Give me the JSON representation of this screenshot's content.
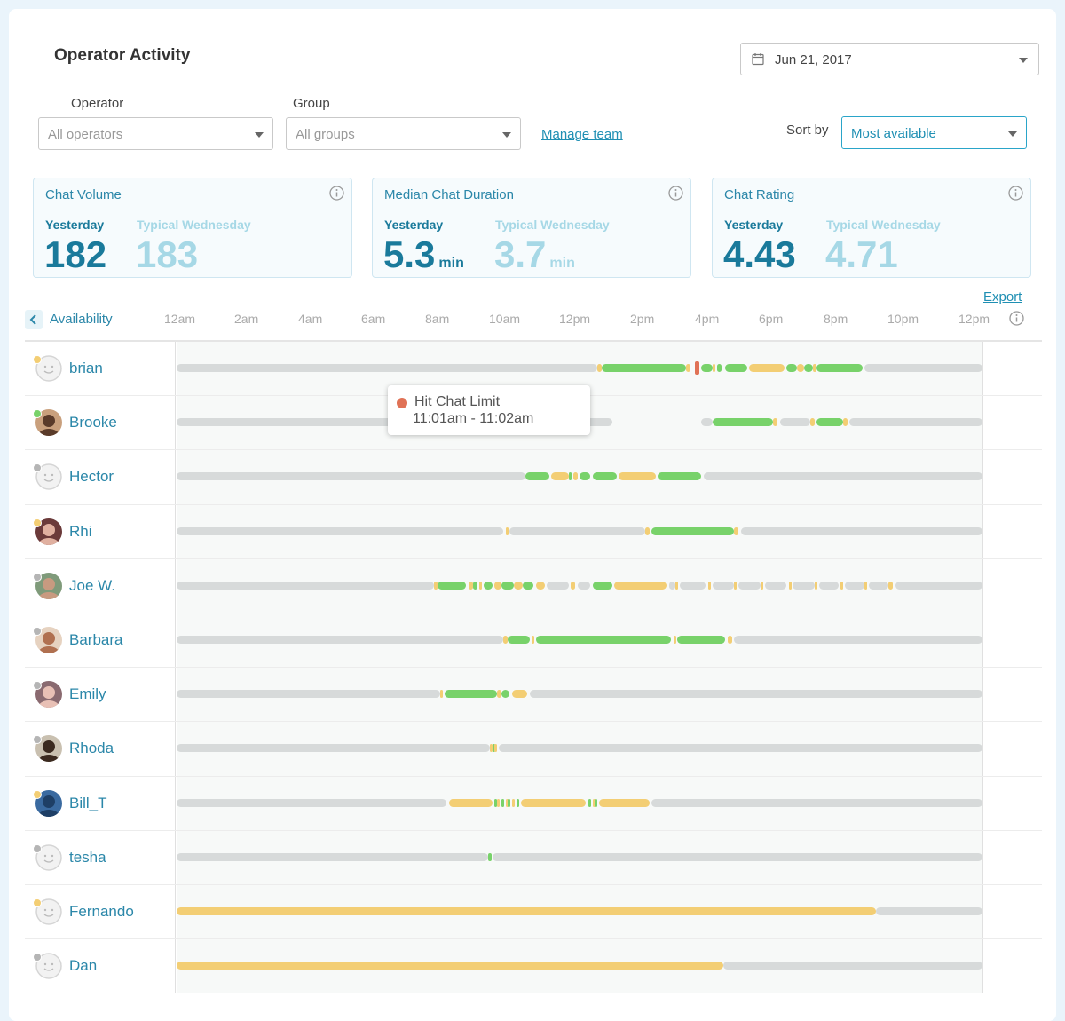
{
  "page": {
    "title": "Operator Activity"
  },
  "date_picker": {
    "value": "Jun 21, 2017",
    "icon": "calendar-icon"
  },
  "filters": {
    "operator": {
      "label": "Operator",
      "placeholder": "All operators"
    },
    "group": {
      "label": "Group",
      "placeholder": "All groups"
    },
    "manage_team": "Manage team",
    "sort_by": {
      "label": "Sort by",
      "value": "Most available"
    }
  },
  "stats": [
    {
      "title": "Chat Volume",
      "yesterday_label": "Yesterday",
      "typical_label": "Typical Wednesday",
      "yesterday_value": "182",
      "typical_value": "183",
      "unit": ""
    },
    {
      "title": "Median Chat Duration",
      "yesterday_label": "Yesterday",
      "typical_label": "Typical Wednesday",
      "yesterday_value": "5.3",
      "typical_value": "3.7",
      "unit": "min"
    },
    {
      "title": "Chat Rating",
      "yesterday_label": "Yesterday",
      "typical_label": "Typical Wednesday",
      "yesterday_value": "4.43",
      "typical_value": "4.71",
      "unit": ""
    }
  ],
  "export_label": "Export",
  "availability": {
    "label": "Availability",
    "ticks": [
      "12am",
      "2am",
      "4am",
      "6am",
      "8am",
      "10am",
      "12pm",
      "2pm",
      "4pm",
      "6pm",
      "8pm",
      "10pm",
      "12pm"
    ]
  },
  "colors": {
    "online": "#78d26a",
    "away": "#f3ce74",
    "offline": "#d7dada",
    "limit": "#e07256",
    "accent": "#2b87a9"
  },
  "tooltip": {
    "title": "Hit Chat Limit",
    "range": "11:01am - 11:02am"
  },
  "operators": [
    {
      "name": "brian",
      "status": "away",
      "avatar": "default",
      "segments": [
        [
          "off",
          0,
          19.3
        ],
        [
          "away",
          19.3,
          19.5
        ],
        [
          "avail",
          19.5,
          23.4
        ],
        [
          "away",
          23.4,
          23.6
        ],
        [
          "limit",
          23.8,
          24.0
        ],
        [
          "avail",
          24.1,
          24.6
        ],
        [
          "away",
          24.6,
          24.7
        ],
        [
          "avail",
          24.8,
          25.0
        ],
        [
          "avail",
          25.2,
          26.2
        ],
        [
          "away",
          26.3,
          27.9
        ],
        [
          "avail",
          28.0,
          28.5
        ],
        [
          "away",
          28.5,
          28.8
        ],
        [
          "avail",
          28.8,
          29.2
        ],
        [
          "away",
          29.2,
          29.4
        ],
        [
          "avail",
          29.4,
          31.5
        ],
        [
          "off",
          31.6,
          37
        ]
      ]
    },
    {
      "name": "Brooke",
      "status": "online",
      "avatar": "photo-1",
      "segments": [
        [
          "off",
          0,
          20.0
        ],
        [
          "off",
          24.1,
          24.6
        ],
        [
          "avail",
          24.6,
          27.4
        ],
        [
          "away",
          27.4,
          27.6
        ],
        [
          "off",
          27.7,
          29.1
        ],
        [
          "away",
          29.1,
          29.3
        ],
        [
          "avail",
          29.4,
          30.6
        ],
        [
          "away",
          30.6,
          30.8
        ],
        [
          "off",
          30.9,
          37
        ]
      ]
    },
    {
      "name": "Hector",
      "status": "offline",
      "avatar": "default",
      "segments": [
        [
          "off",
          0,
          16.0
        ],
        [
          "avail",
          16.0,
          17.1
        ],
        [
          "away",
          17.2,
          18.0
        ],
        [
          "avail",
          18.0,
          18.1
        ],
        [
          "away",
          18.2,
          18.4
        ],
        [
          "avail",
          18.5,
          19.0
        ],
        [
          "avail",
          19.1,
          20.2
        ],
        [
          "away",
          20.3,
          22.0
        ],
        [
          "avail",
          22.1,
          24.1
        ],
        [
          "off",
          24.2,
          37
        ]
      ]
    },
    {
      "name": "Rhi",
      "status": "away",
      "avatar": "photo-2",
      "segments": [
        [
          "off",
          0,
          15.0
        ],
        [
          "away",
          15.1,
          15.2
        ],
        [
          "off",
          15.3,
          21.5
        ],
        [
          "away",
          21.5,
          21.7
        ],
        [
          "avail",
          21.8,
          25.6
        ],
        [
          "away",
          25.6,
          25.8
        ],
        [
          "off",
          25.9,
          37
        ]
      ]
    },
    {
      "name": "Joe W.",
      "status": "offline",
      "avatar": "photo-3",
      "segments": [
        [
          "off",
          0,
          11.8
        ],
        [
          "away",
          11.8,
          12.0
        ],
        [
          "avail",
          12.0,
          13.3
        ],
        [
          "away",
          13.4,
          13.6
        ],
        [
          "avail",
          13.6,
          13.8
        ],
        [
          "away",
          13.9,
          14.0
        ],
        [
          "avail",
          14.1,
          14.5
        ],
        [
          "away",
          14.6,
          14.9
        ],
        [
          "avail",
          14.9,
          15.5
        ],
        [
          "away",
          15.5,
          15.9
        ],
        [
          "avail",
          15.9,
          16.4
        ],
        [
          "away",
          16.5,
          16.9
        ],
        [
          "off",
          17.0,
          18.0
        ],
        [
          "away",
          18.1,
          18.3
        ],
        [
          "off",
          18.4,
          19.0
        ],
        [
          "avail",
          19.1,
          20.0
        ],
        [
          "away",
          20.1,
          22.5
        ],
        [
          "off",
          22.6,
          22.9
        ],
        [
          "away",
          22.9,
          23.0
        ],
        [
          "off",
          23.1,
          24.3
        ],
        [
          "away",
          24.4,
          24.5
        ],
        [
          "off",
          24.6,
          25.6
        ],
        [
          "away",
          25.6,
          25.7
        ],
        [
          "off",
          25.8,
          26.8
        ],
        [
          "away",
          26.8,
          26.9
        ],
        [
          "off",
          27.0,
          28.0
        ],
        [
          "away",
          28.1,
          28.2
        ],
        [
          "off",
          28.3,
          29.3
        ],
        [
          "away",
          29.3,
          29.4
        ],
        [
          "off",
          29.5,
          30.4
        ],
        [
          "away",
          30.5,
          30.6
        ],
        [
          "off",
          30.7,
          31.6
        ],
        [
          "away",
          31.6,
          31.7
        ],
        [
          "off",
          31.8,
          32.7
        ],
        [
          "away",
          32.7,
          32.9
        ],
        [
          "off",
          33.0,
          37
        ]
      ]
    },
    {
      "name": "Barbara",
      "status": "offline",
      "avatar": "photo-4",
      "segments": [
        [
          "off",
          0,
          15.0
        ],
        [
          "away",
          15.0,
          15.2
        ],
        [
          "avail",
          15.2,
          16.2
        ],
        [
          "away",
          16.3,
          16.4
        ],
        [
          "avail",
          16.5,
          22.7
        ],
        [
          "away",
          22.8,
          22.9
        ],
        [
          "avail",
          23.0,
          25.2
        ],
        [
          "away",
          25.3,
          25.5
        ],
        [
          "off",
          25.6,
          37
        ]
      ]
    },
    {
      "name": "Emily",
      "status": "offline",
      "avatar": "photo-5",
      "segments": [
        [
          "off",
          0,
          12.1
        ],
        [
          "away",
          12.1,
          12.2
        ],
        [
          "avail",
          12.3,
          14.7
        ],
        [
          "away",
          14.7,
          14.9
        ],
        [
          "avail",
          14.9,
          15.3
        ],
        [
          "away",
          15.4,
          16.1
        ],
        [
          "off",
          16.2,
          37
        ]
      ]
    },
    {
      "name": "Rhoda",
      "status": "offline",
      "avatar": "photo-6",
      "segments": [
        [
          "off",
          0,
          14.4
        ],
        [
          "away",
          14.4,
          14.5
        ],
        [
          "avail",
          14.5,
          14.6
        ],
        [
          "away",
          14.6,
          14.7
        ],
        [
          "off",
          14.8,
          37
        ]
      ]
    },
    {
      "name": "Bill_T",
      "status": "away",
      "avatar": "photo-7",
      "segments": [
        [
          "off",
          0,
          12.4
        ],
        [
          "away",
          12.5,
          14.5
        ],
        [
          "avail",
          14.6,
          14.7
        ],
        [
          "away",
          14.7,
          14.8
        ],
        [
          "avail",
          14.9,
          15.0
        ],
        [
          "away",
          15.1,
          15.2
        ],
        [
          "avail",
          15.2,
          15.3
        ],
        [
          "away",
          15.4,
          15.5
        ],
        [
          "avail",
          15.6,
          15.7
        ],
        [
          "away",
          15.8,
          18.8
        ],
        [
          "avail",
          18.9,
          19.0
        ],
        [
          "away",
          19.1,
          19.2
        ],
        [
          "avail",
          19.2,
          19.3
        ],
        [
          "away",
          19.4,
          21.7
        ],
        [
          "off",
          21.8,
          37
        ]
      ]
    },
    {
      "name": "tesha",
      "status": "offline",
      "avatar": "default",
      "segments": [
        [
          "off",
          0,
          14.3
        ],
        [
          "avail",
          14.3,
          14.45
        ],
        [
          "off",
          14.5,
          37
        ]
      ]
    },
    {
      "name": "Fernando",
      "status": "away",
      "avatar": "default",
      "segments": [
        [
          "away",
          0,
          32.1
        ],
        [
          "off",
          32.1,
          37
        ]
      ]
    },
    {
      "name": "Dan",
      "status": "offline",
      "avatar": "default",
      "segments": [
        [
          "away",
          0,
          25.1
        ],
        [
          "off",
          25.1,
          37
        ]
      ]
    }
  ]
}
